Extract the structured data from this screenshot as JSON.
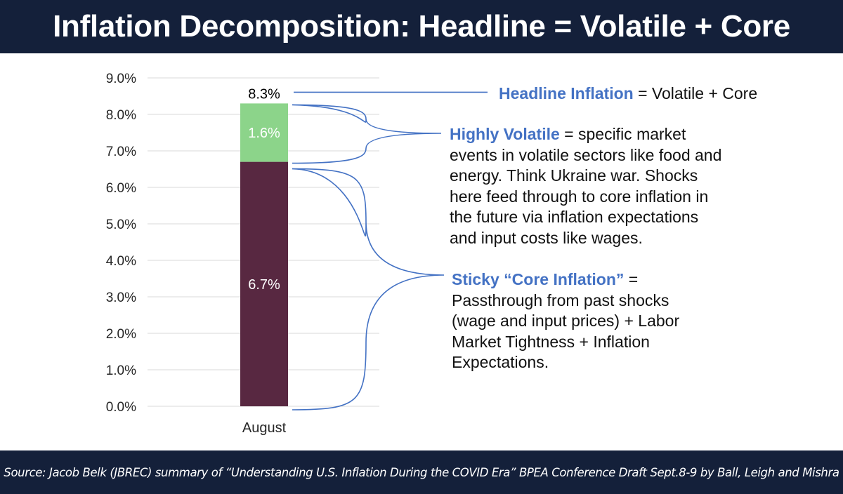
{
  "title": "Inflation Decomposition: Headline = Volatile + Core",
  "footer": "Source: Jacob Belk (JBREC) summary of “Understanding U.S. Inflation During the COVID Era” BPEA Conference Draft Sept.8-9 by Ball, Leigh and Mishra",
  "colors": {
    "core": "#582841",
    "volatile": "#8cd48a",
    "accent": "#4472c4",
    "banner": "#14203a"
  },
  "chart_data": {
    "type": "bar",
    "stacked": true,
    "categories": [
      "August"
    ],
    "series": [
      {
        "name": "Core",
        "values": [
          6.7
        ],
        "label": "6.7%"
      },
      {
        "name": "Volatile",
        "values": [
          1.6
        ],
        "label": "1.6%"
      }
    ],
    "total_label": "8.3%",
    "ylim": [
      0,
      9
    ],
    "yticks": [
      "0.0%",
      "1.0%",
      "2.0%",
      "3.0%",
      "4.0%",
      "5.0%",
      "6.0%",
      "7.0%",
      "8.0%",
      "9.0%"
    ],
    "grid": true,
    "xlabel": "",
    "ylabel": ""
  },
  "annotations": {
    "headline": {
      "term": "Headline Inflation",
      "rest": " = Volatile + Core"
    },
    "volatile": {
      "term": "Highly Volatile",
      "rest": " = specific market",
      "lines": [
        "events in volatile sectors like food and",
        "energy. Think Ukraine war.  Shocks",
        "here feed through to core inflation in",
        "the future via inflation expectations",
        "and input costs like wages."
      ]
    },
    "core": {
      "term": "Sticky “Core Inflation”",
      "rest": " =",
      "lines": [
        "Passthrough from past shocks",
        "(wage and input prices) + Labor",
        "Market Tightness + Inflation",
        "Expectations."
      ]
    }
  }
}
